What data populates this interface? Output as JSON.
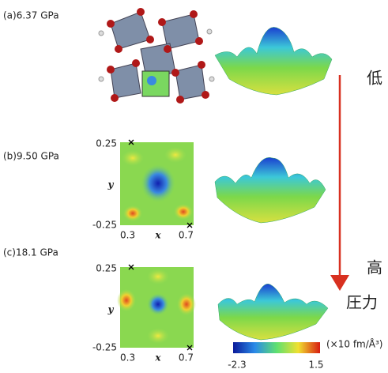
{
  "panels": [
    {
      "label": "(a)6.37 GPa"
    },
    {
      "label": "(b)9.50 GPa",
      "map": {
        "y_top": "0.25",
        "y_bottom": "-0.25",
        "x_left": "0.3",
        "x_right": "0.7",
        "x_label": "x",
        "y_label": "y"
      }
    },
    {
      "label": "(c)18.1 GPa",
      "map": {
        "y_top": "0.25",
        "y_bottom": "-0.25",
        "x_left": "0.3",
        "x_right": "0.7",
        "x_label": "x",
        "y_label": "y"
      }
    }
  ],
  "colorbar": {
    "min": "-2.3",
    "max": "1.5",
    "unit": "(×10 fm/Å³)"
  },
  "arrow": {
    "top": "低",
    "bottom": "高",
    "label": "圧力"
  }
}
